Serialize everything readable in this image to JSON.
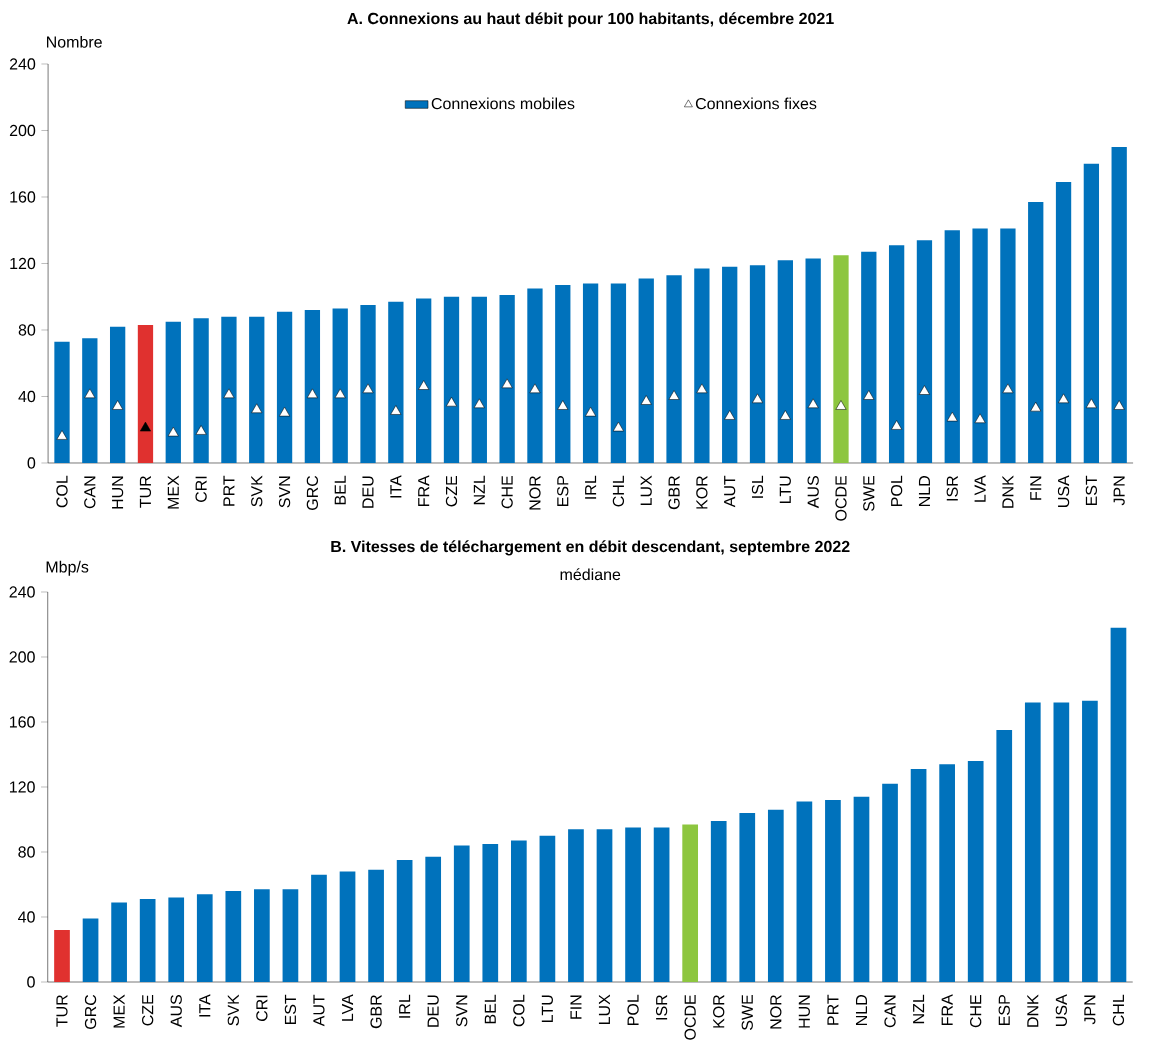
{
  "chart_data": [
    {
      "type": "bar",
      "title": "A. Connexions au haut débit pour 100 habitants, décembre 2021",
      "ylabel": "Nombre",
      "categories": [
        "COL",
        "CAN",
        "HUN",
        "TUR",
        "MEX",
        "CRI",
        "PRT",
        "SVK",
        "SVN",
        "GRC",
        "BEL",
        "DEU",
        "ITA",
        "FRA",
        "CZE",
        "NZL",
        "CHE",
        "NOR",
        "ESP",
        "IRL",
        "CHL",
        "LUX",
        "GBR",
        "KOR",
        "AUT",
        "ISL",
        "LTU",
        "AUS",
        "OCDE",
        "SWE",
        "POL",
        "NLD",
        "ISR",
        "LVA",
        "DNK",
        "FIN",
        "USA",
        "EST",
        "JPN"
      ],
      "series": [
        {
          "name": "Connexions mobiles",
          "color": "#0072bc",
          "colors": [
            "#0072bc",
            "#0072bc",
            "#0072bc",
            "#e0312f",
            "#0072bc",
            "#0072bc",
            "#0072bc",
            "#0072bc",
            "#0072bc",
            "#0072bc",
            "#0072bc",
            "#0072bc",
            "#0072bc",
            "#0072bc",
            "#0072bc",
            "#0072bc",
            "#0072bc",
            "#0072bc",
            "#0072bc",
            "#0072bc",
            "#0072bc",
            "#0072bc",
            "#0072bc",
            "#0072bc",
            "#0072bc",
            "#0072bc",
            "#0072bc",
            "#0072bc",
            "#8dc63f",
            "#0072bc",
            "#0072bc",
            "#0072bc",
            "#0072bc",
            "#0072bc",
            "#0072bc",
            "#0072bc",
            "#0072bc",
            "#0072bc",
            "#0072bc"
          ],
          "values": [
            73,
            75,
            82,
            83,
            85,
            87,
            88,
            88,
            91,
            92,
            93,
            95,
            97,
            99,
            100,
            100,
            101,
            105,
            107,
            108,
            108,
            111,
            113,
            117,
            118,
            119,
            122,
            123,
            125,
            127,
            131,
            134,
            140,
            141,
            141,
            157,
            169,
            180,
            190
          ]
        },
        {
          "name": "Connexions fixes",
          "type": "scatter",
          "marker": "triangle",
          "color": "#ffffff",
          "colors": [
            "#ffffff",
            "#ffffff",
            "#ffffff",
            "#000000",
            "#ffffff",
            "#ffffff",
            "#ffffff",
            "#ffffff",
            "#ffffff",
            "#ffffff",
            "#ffffff",
            "#ffffff",
            "#ffffff",
            "#ffffff",
            "#ffffff",
            "#ffffff",
            "#ffffff",
            "#ffffff",
            "#ffffff",
            "#ffffff",
            "#ffffff",
            "#ffffff",
            "#ffffff",
            "#ffffff",
            "#ffffff",
            "#ffffff",
            "#ffffff",
            "#ffffff",
            "#ffffff",
            "#ffffff",
            "#ffffff",
            "#ffffff",
            "#ffffff",
            "#ffffff",
            "#ffffff",
            "#ffffff",
            "#ffffff",
            "#ffffff",
            "#ffffff"
          ],
          "values": [
            16,
            41,
            34,
            21,
            18,
            19,
            41,
            32,
            30,
            41,
            41,
            44,
            31,
            46,
            36,
            35,
            47,
            44,
            34,
            30,
            21,
            37,
            40,
            44,
            28,
            38,
            28,
            35,
            34,
            40,
            22,
            43,
            27,
            26,
            44,
            33,
            38,
            35,
            34
          ]
        }
      ],
      "ylim": [
        0,
        240
      ],
      "yticks": [
        0,
        40,
        80,
        120,
        160,
        200,
        240
      ],
      "legend": "top"
    },
    {
      "type": "bar",
      "title": "B. Vitesses de téléchargement en débit descendant, septembre 2022",
      "subtitle": "médiane",
      "ylabel": "Mbp/s",
      "categories": [
        "TUR",
        "GRC",
        "MEX",
        "CZE",
        "AUS",
        "ITA",
        "SVK",
        "CRI",
        "EST",
        "AUT",
        "LVA",
        "GBR",
        "IRL",
        "DEU",
        "SVN",
        "BEL",
        "COL",
        "LTU",
        "FIN",
        "LUX",
        "POL",
        "ISR",
        "OCDE",
        "KOR",
        "SWE",
        "NOR",
        "HUN",
        "PRT",
        "NLD",
        "CAN",
        "NZL",
        "FRA",
        "CHE",
        "ESP",
        "DNK",
        "USA",
        "JPN",
        "CHL"
      ],
      "values": [
        32,
        39,
        49,
        51,
        52,
        54,
        56,
        57,
        57,
        66,
        68,
        69,
        75,
        77,
        84,
        85,
        87,
        90,
        94,
        94,
        95,
        95,
        97,
        99,
        104,
        106,
        111,
        112,
        114,
        122,
        131,
        134,
        136,
        155,
        172,
        172,
        173,
        218
      ],
      "colors": [
        "#e0312f",
        "#0072bc",
        "#0072bc",
        "#0072bc",
        "#0072bc",
        "#0072bc",
        "#0072bc",
        "#0072bc",
        "#0072bc",
        "#0072bc",
        "#0072bc",
        "#0072bc",
        "#0072bc",
        "#0072bc",
        "#0072bc",
        "#0072bc",
        "#0072bc",
        "#0072bc",
        "#0072bc",
        "#0072bc",
        "#0072bc",
        "#0072bc",
        "#8dc63f",
        "#0072bc",
        "#0072bc",
        "#0072bc",
        "#0072bc",
        "#0072bc",
        "#0072bc",
        "#0072bc",
        "#0072bc",
        "#0072bc",
        "#0072bc",
        "#0072bc",
        "#0072bc",
        "#0072bc",
        "#0072bc",
        "#0072bc"
      ],
      "ylim": [
        0,
        240
      ],
      "yticks": [
        0,
        40,
        80,
        120,
        160,
        200,
        240
      ]
    }
  ]
}
